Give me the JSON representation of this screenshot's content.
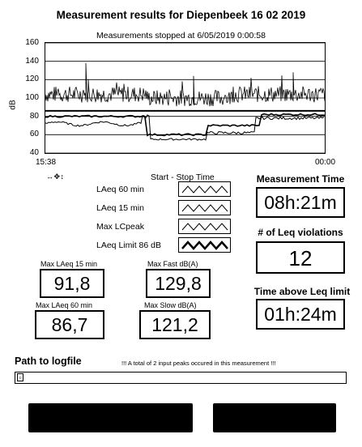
{
  "title": "Measurement results for Diepenbeek 16 02 2019",
  "subtitle": "Measurements stopped at 6/05/2019 0:00:58",
  "chart_data": {
    "type": "line",
    "ylabel": "dB",
    "ylim": [
      40,
      160
    ],
    "yticks": [
      40,
      60,
      80,
      100,
      120,
      140,
      160
    ],
    "xticks": [
      "15:38",
      "00:00"
    ],
    "limit_value": 86,
    "series": [
      {
        "name": "LAeq 60 min"
      },
      {
        "name": "LAeq 15 min"
      },
      {
        "name": "Max LCpeak"
      },
      {
        "name": "LAeq Limit 86 dB"
      }
    ]
  },
  "cursor_tools": "↔ ✥ ↕",
  "legend": {
    "title": "Start - Stop Time",
    "items": [
      "LAeq 60 min",
      "LAeq 15 min",
      "Max LCpeak",
      "LAeq Limit 86 dB"
    ]
  },
  "stats": {
    "max_laeq_15_label": "Max LAeq 15 min",
    "max_laeq_15_value": "91,8",
    "max_fast_label": "Max Fast dB(A)",
    "max_fast_value": "129,8",
    "max_laeq_60_label": "Max LAeq 60 min",
    "max_laeq_60_value": "86,7",
    "max_slow_label": "Max  Slow dB(A)",
    "max_slow_value": "121,2"
  },
  "measurement_time": {
    "label": "Measurement Time",
    "value": "08h:21m"
  },
  "violations": {
    "label": "# of Leq violations",
    "value": "12"
  },
  "time_above": {
    "label": "Time above Leq limit",
    "value": "01h:24m"
  },
  "path": {
    "label": "Path to logfile",
    "value": ""
  },
  "peak_message": "!!! A total of 2 input peaks occured in this measurement !!!"
}
